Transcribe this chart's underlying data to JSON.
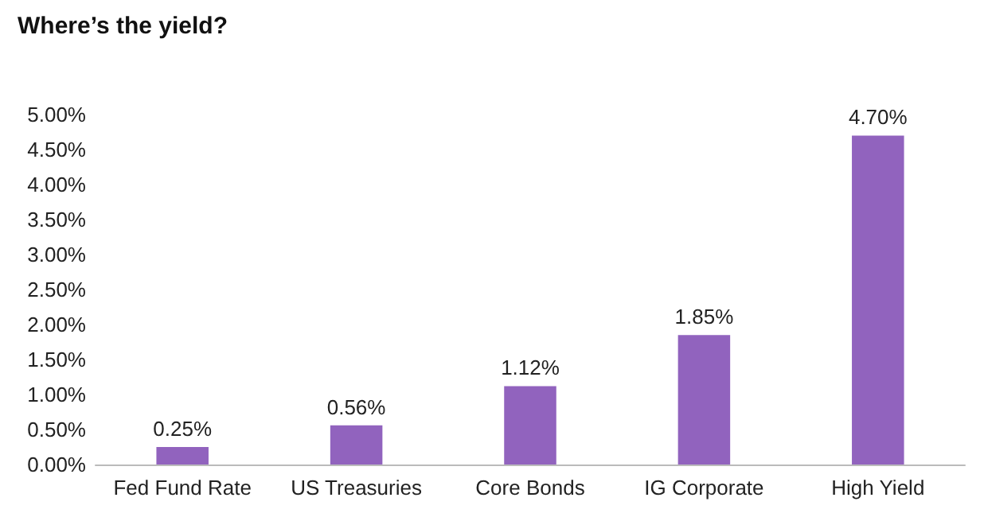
{
  "chart_data": {
    "type": "bar",
    "title": "Where’s the yield?",
    "categories": [
      "Fed Fund Rate",
      "US Treasuries",
      "Core Bonds",
      "IG Corporate",
      "High Yield"
    ],
    "values": [
      0.25,
      0.56,
      1.12,
      1.85,
      4.7
    ],
    "value_labels": [
      "0.25%",
      "0.56%",
      "1.12%",
      "1.85%",
      "4.70%"
    ],
    "color": "#9163be",
    "ylim": [
      0,
      5
    ],
    "yticks": [
      {
        "value": 0,
        "label": "0.00%"
      },
      {
        "value": 0.5,
        "label": "0.50%"
      },
      {
        "value": 1,
        "label": "1.00%"
      },
      {
        "value": 1.5,
        "label": "1.50%"
      },
      {
        "value": 2,
        "label": "2.00%"
      },
      {
        "value": 2.5,
        "label": "2.50%"
      },
      {
        "value": 3,
        "label": "3.00%"
      },
      {
        "value": 3.5,
        "label": "3.50%"
      },
      {
        "value": 4,
        "label": "4.00%"
      },
      {
        "value": 4.5,
        "label": "4.50%"
      },
      {
        "value": 5,
        "label": "5.00%"
      }
    ],
    "grid": false
  }
}
